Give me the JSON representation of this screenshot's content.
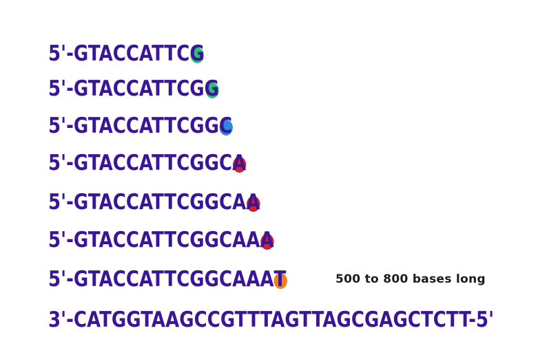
{
  "fragments": [
    {
      "prefix": "5'-",
      "sequence": "GTACCATTC",
      "terminal_base": "G",
      "dot_color": "#2dbf7a"
    },
    {
      "prefix": "5'-",
      "sequence": "GTACCATTCG",
      "terminal_base": "G",
      "dot_color": "#2dbf7a"
    },
    {
      "prefix": "5'-",
      "sequence": "GTACCATTCGG",
      "terminal_base": "C",
      "dot_color": "#2e86e0"
    },
    {
      "prefix": "5'-",
      "sequence": "GTACCATTCGGC",
      "terminal_base": "A",
      "dot_color": "#d81e2a"
    },
    {
      "prefix": "5'-",
      "sequence": "GTACCATTCGGCA",
      "terminal_base": "A",
      "dot_color": "#d81e2a"
    },
    {
      "prefix": "5'-",
      "sequence": "GTACCATTCGGCAA",
      "terminal_base": "A",
      "dot_color": "#d81e2a"
    },
    {
      "prefix": "5'-",
      "sequence": "GTACCATTCGGCAAA",
      "terminal_base": "T",
      "dot_color": "#f07f1e"
    }
  ],
  "template_strand": "3'-CATGGTAAGCCGTTTAGTTAGCGAGCTCTT-5'",
  "note": "500 to 800 bases long",
  "colors": {
    "strand_text": "#3a1696",
    "note_text": "#1b1b1b",
    "G": "#2dbf7a",
    "C": "#2e86e0",
    "A": "#d81e2a",
    "T": "#f07f1e"
  }
}
